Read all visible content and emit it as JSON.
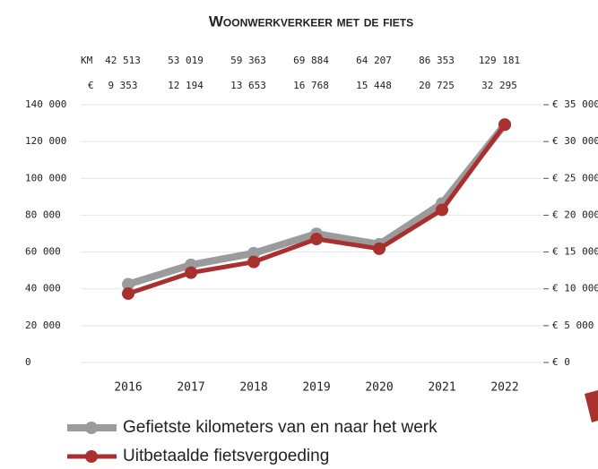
{
  "chart_data": {
    "type": "line",
    "title": "Woonwerkverkeer met de fiets",
    "categories": [
      "2016",
      "2017",
      "2018",
      "2019",
      "2020",
      "2021",
      "2022"
    ],
    "series": [
      {
        "name": "Gefietste kilometers van en naar het werk",
        "color": "#9b9b9b",
        "label_prefix": "KM",
        "values": [
          42513,
          53019,
          59363,
          69884,
          64207,
          86353,
          129181
        ],
        "value_labels": [
          "42 513",
          "53 019",
          "59 363",
          "69 884",
          "64 207",
          "86 353",
          "129 181"
        ]
      },
      {
        "name": "Uitbetaalde fietsvergoeding",
        "color": "#a8312f",
        "label_prefix": "€",
        "axis": "y2",
        "values": [
          9353,
          12194,
          13653,
          16768,
          15448,
          20725,
          32295
        ],
        "value_labels": [
          "9 353",
          "12 194",
          "13 653",
          "16 768",
          "15 448",
          "20 725",
          "32 295"
        ]
      }
    ],
    "ylim": [
      0,
      140000
    ],
    "yticks": [
      0,
      {
        "value": 20000,
        "label": "20 000"
      },
      {
        "value": 40000,
        "label": "40 000"
      },
      {
        "value": 60000,
        "label": "60 000"
      },
      {
        "value": 80000,
        "label": "80 000"
      },
      {
        "value": 100000,
        "label": "100 000"
      },
      {
        "value": 120000,
        "label": "120 000"
      },
      {
        "value": 140000,
        "label": "140 000"
      }
    ],
    "y2lim": [
      0,
      35000
    ],
    "y2ticks": [
      {
        "value": 0,
        "label": "€ 0"
      },
      {
        "value": 5000,
        "label": "€ 5 000"
      },
      {
        "value": 10000,
        "label": "€ 10 000"
      },
      {
        "value": 15000,
        "label": "€ 15 000"
      },
      {
        "value": 20000,
        "label": "€ 20 000"
      },
      {
        "value": 25000,
        "label": "€ 25 000"
      },
      {
        "value": 30000,
        "label": "€ 30 000"
      },
      {
        "value": 35000,
        "label": "€ 35 000"
      }
    ],
    "grid": true
  }
}
